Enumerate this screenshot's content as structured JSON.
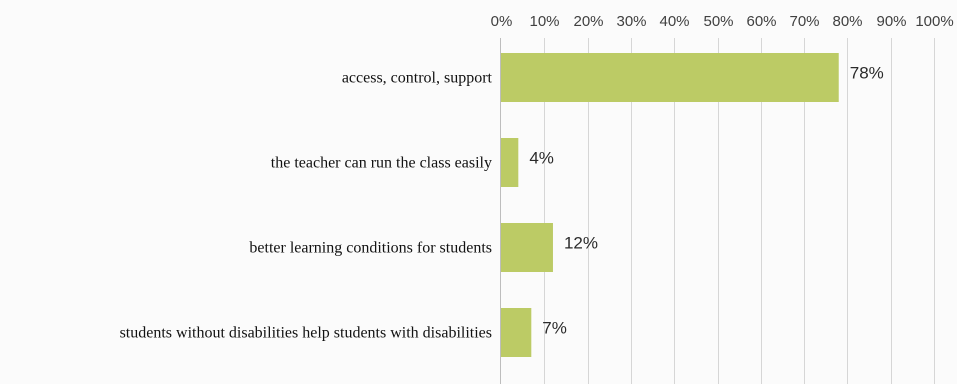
{
  "chart_data": {
    "type": "bar",
    "orientation": "horizontal",
    "x_axis_position": "top",
    "categories": [
      "access, control, support",
      "the teacher can run the class easily",
      "better learning conditions for students",
      "students without disabilities help students with disabilities"
    ],
    "values": [
      78,
      4,
      12,
      7
    ],
    "data_labels": [
      "78%",
      "4%",
      "12%",
      "7%"
    ],
    "xlim": [
      0,
      100
    ],
    "ticks": [
      "0%",
      "10%",
      "20%",
      "30%",
      "40%",
      "50%",
      "60%",
      "70%",
      "80%",
      "90%",
      "100%"
    ],
    "title": "",
    "xlabel": "",
    "ylabel": "",
    "grid": "vertical",
    "legend": "none",
    "colors": {
      "bar": "#bccb65",
      "grid": "#d6d6d6",
      "axis": "#bdbdbd",
      "background": "#fbfbfb"
    }
  }
}
